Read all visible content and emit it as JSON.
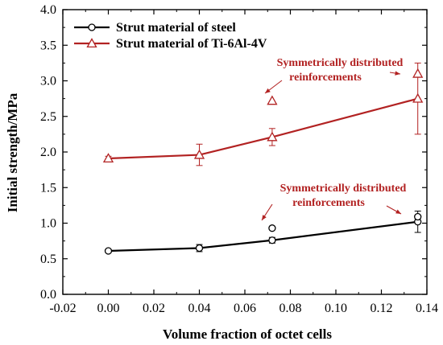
{
  "chart_data": {
    "type": "line",
    "xlabel": "Volume fraction of octet cells",
    "ylabel": "Initial strength/MPa",
    "xlim": [
      -0.02,
      0.14
    ],
    "ylim": [
      0.0,
      4.0
    ],
    "x_ticks": [
      -0.02,
      0.0,
      0.02,
      0.04,
      0.06,
      0.08,
      0.1,
      0.12,
      0.14
    ],
    "x_tick_labels": [
      "-0.02",
      "0.00",
      "0.02",
      "0.04",
      "0.06",
      "0.08",
      "0.10",
      "0.12",
      "0.14"
    ],
    "y_ticks": [
      0.0,
      0.5,
      1.0,
      1.5,
      2.0,
      2.5,
      3.0,
      3.5,
      4.0
    ],
    "y_tick_labels": [
      "0.0",
      "0.5",
      "1.0",
      "1.5",
      "2.0",
      "2.5",
      "3.0",
      "3.5",
      "4.0"
    ],
    "legend_position": "top-left",
    "series": [
      {
        "name": "Strut material of steel",
        "marker": "circle",
        "color": "#000000",
        "x": [
          0.0,
          0.04,
          0.072,
          0.136
        ],
        "y": [
          0.61,
          0.65,
          0.76,
          1.02
        ],
        "error": [
          0.02,
          0.05,
          0.04,
          0.15
        ]
      },
      {
        "name": "Strut material of Ti-6Al-4V",
        "marker": "triangle",
        "color": "#b22222",
        "x": [
          0.0,
          0.04,
          0.072,
          0.136
        ],
        "y": [
          1.91,
          1.96,
          2.21,
          2.75
        ],
        "error": [
          0.03,
          0.15,
          0.12,
          0.5
        ]
      }
    ],
    "extra_points": [
      {
        "series": 0,
        "x": 0.072,
        "y": 0.93
      },
      {
        "series": 0,
        "x": 0.136,
        "y": 1.09
      },
      {
        "series": 1,
        "x": 0.072,
        "y": 2.72
      },
      {
        "series": 1,
        "x": 0.136,
        "y": 3.1
      }
    ],
    "annotations": [
      {
        "lines": [
          "Symmetrically distributed",
          "reinforcements"
        ],
        "color": "#b22222"
      },
      {
        "lines": [
          "Symmetrically distributed",
          "reinforcements"
        ],
        "color": "#b22222"
      }
    ]
  }
}
